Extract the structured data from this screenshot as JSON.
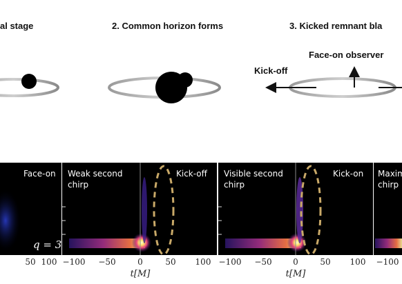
{
  "stages": [
    {
      "label": "al stage"
    },
    {
      "label": "2. Common horizon forms"
    },
    {
      "label": "3. Kicked remnant  bla"
    }
  ],
  "annotations": {
    "face_on_observer": "Face-on observer",
    "kick_off": "Kick-off"
  },
  "panels": [
    {
      "labels": [
        "Face-on"
      ],
      "q_label": "q = 3"
    },
    {
      "labels": [
        "Weak second",
        "chirp"
      ],
      "corner": "Kick-off"
    },
    {
      "labels": [
        "Visible second",
        "chirp"
      ],
      "corner": "Kick-on"
    },
    {
      "labels": [
        "Maxim",
        "chirp"
      ]
    }
  ],
  "axis": {
    "xlabel": "t[M]",
    "ticks_first": [
      "50",
      "100"
    ],
    "ticks": [
      "−100",
      "−50",
      "0",
      "50",
      "100"
    ],
    "ticks_last": [
      "−100"
    ]
  },
  "colors": {
    "background_dark": "#000000",
    "heat_hot": "#fff6a0",
    "heat_mid": "#d03a78",
    "heat_low": "#3a1e8a",
    "dashed_oval": "#c9a968"
  }
}
